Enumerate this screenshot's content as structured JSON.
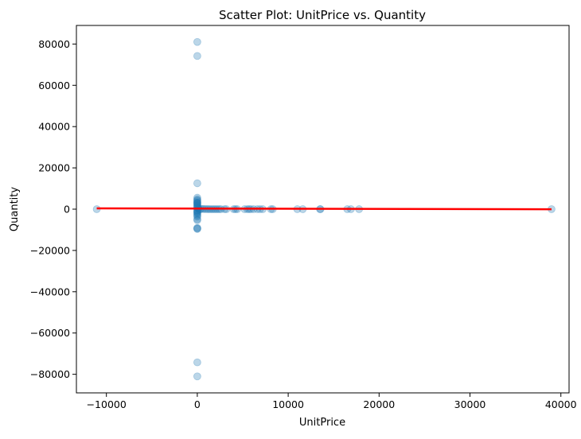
{
  "chart_data": {
    "type": "scatter",
    "title": "Scatter Plot: UnitPrice vs. Quantity",
    "xlabel": "UnitPrice",
    "ylabel": "Quantity",
    "xlim": [
      -13300,
      40900
    ],
    "ylim": [
      -89000,
      89000
    ],
    "xticks": [
      -10000,
      0,
      10000,
      20000,
      30000,
      40000
    ],
    "xtick_labels": [
      "−10000",
      "0",
      "10000",
      "20000",
      "30000",
      "40000"
    ],
    "yticks": [
      -80000,
      -60000,
      -40000,
      -20000,
      0,
      20000,
      40000,
      60000,
      80000
    ],
    "ytick_labels": [
      "−80000",
      "−60000",
      "−40000",
      "−20000",
      "0",
      "20000",
      "40000",
      "60000",
      "80000"
    ],
    "grid": false,
    "point_color": "#1f77b4",
    "point_alpha": 0.3,
    "line_color": "#ff0000",
    "series": [
      {
        "type": "scatter",
        "points": [
          [
            -11062,
            1
          ],
          [
            0,
            80995
          ],
          [
            0,
            74215
          ],
          [
            0,
            12540
          ],
          [
            0,
            5568
          ],
          [
            0,
            4800
          ],
          [
            0,
            4300
          ],
          [
            0,
            3906
          ],
          [
            0,
            3186
          ],
          [
            0,
            3114
          ],
          [
            0,
            2880
          ],
          [
            0,
            2400
          ],
          [
            0,
            2000
          ],
          [
            0,
            1600
          ],
          [
            0,
            1200
          ],
          [
            0,
            800
          ],
          [
            0,
            400
          ],
          [
            0,
            -400
          ],
          [
            0,
            -800
          ],
          [
            0,
            -1200
          ],
          [
            0,
            -1600
          ],
          [
            0,
            -2000
          ],
          [
            0,
            -2600
          ],
          [
            0,
            -3100
          ],
          [
            0,
            -3667
          ],
          [
            0,
            -4830
          ],
          [
            0,
            -5368
          ],
          [
            0,
            -9058
          ],
          [
            0,
            -9360
          ],
          [
            0,
            -9600
          ],
          [
            0,
            -74215
          ],
          [
            0,
            -80995
          ],
          [
            150,
            300
          ],
          [
            250,
            -200
          ],
          [
            400,
            150
          ],
          [
            600,
            100
          ],
          [
            800,
            60
          ],
          [
            1000,
            40
          ],
          [
            1200,
            20
          ],
          [
            1400,
            10
          ],
          [
            1600,
            5
          ],
          [
            1800,
            3
          ],
          [
            2000,
            2
          ],
          [
            2200,
            1
          ],
          [
            2400,
            1
          ],
          [
            2600,
            1
          ],
          [
            3000,
            1
          ],
          [
            3200,
            1
          ],
          [
            4000,
            1
          ],
          [
            4200,
            1
          ],
          [
            4400,
            1
          ],
          [
            5200,
            1
          ],
          [
            5500,
            1
          ],
          [
            5700,
            1
          ],
          [
            5900,
            1
          ],
          [
            6200,
            1
          ],
          [
            6600,
            1
          ],
          [
            6900,
            1
          ],
          [
            7200,
            1
          ],
          [
            8100,
            1
          ],
          [
            8300,
            1
          ],
          [
            11000,
            1
          ],
          [
            11600,
            1
          ],
          [
            13500,
            1
          ],
          [
            13550,
            1
          ],
          [
            16500,
            1
          ],
          [
            16900,
            1
          ],
          [
            17800,
            1
          ],
          [
            38970,
            1
          ]
        ]
      },
      {
        "type": "line",
        "name": "",
        "x": [
          -11062,
          38970
        ],
        "y": [
          400,
          -50
        ]
      }
    ]
  }
}
